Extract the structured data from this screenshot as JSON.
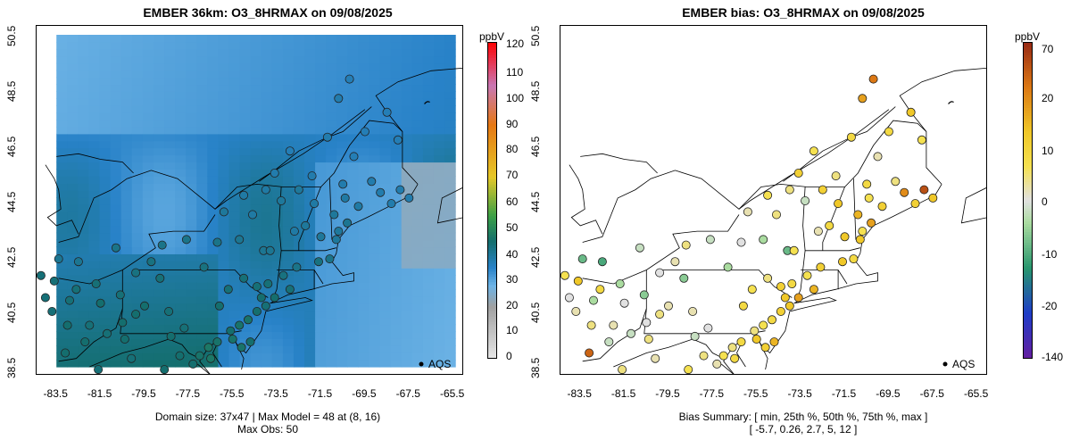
{
  "chart_data": [
    {
      "type": "heatmap",
      "title": "EMBER 36km: O3_8HRMAX on 09/08/2025",
      "colorbar_unit": "ppbV",
      "colorbar_ticks": [
        "120",
        "110",
        "100",
        "90",
        "80",
        "70",
        "60",
        "50",
        "40",
        "30",
        "20",
        "10",
        "0"
      ],
      "colorbar_range": [
        0,
        122
      ],
      "x_ticks": [
        "-83.5",
        "-81.5",
        "-79.5",
        "-77.5",
        "-75.5",
        "-73.5",
        "-71.5",
        "-69.5",
        "-67.5",
        "-65.5"
      ],
      "y_ticks": [
        "38.5",
        "40.5",
        "42.5",
        "44.5",
        "46.5",
        "48.5",
        "50.5"
      ],
      "xlim": [
        -84.4,
        -65.0
      ],
      "ylim": [
        38.5,
        50.5
      ],
      "legend_label": "AQS",
      "footer_line1": "Domain size: 37x47 | Max Model = 48 at (8, 16)",
      "footer_line2": "Max Obs: 50"
    },
    {
      "type": "scatter",
      "title": "EMBER bias: O3_8HRMAX on 09/08/2025",
      "colorbar_unit": "ppbV",
      "colorbar_ticks": [
        "70",
        "20",
        "10",
        "0",
        "-10",
        "-20",
        "-140"
      ],
      "x_ticks": [
        "-83.5",
        "-81.5",
        "-79.5",
        "-77.5",
        "-75.5",
        "-73.5",
        "-71.5",
        "-69.5",
        "-67.5",
        "-65.5"
      ],
      "y_ticks": [
        "38.5",
        "40.5",
        "42.5",
        "44.5",
        "46.5",
        "48.5",
        "50.5"
      ],
      "xlim": [
        -84.4,
        -65.0
      ],
      "ylim": [
        38.5,
        50.5
      ],
      "legend_label": "AQS",
      "footer_line1": "Bias Summary: [ min, 25th %, 50th %, 75th %, max ]",
      "footer_line2": "[ -5.7,   0.26,   2.7,    5,    12 ]",
      "bias_summary": {
        "min": -5.7,
        "p25": 0.26,
        "p50": 2.7,
        "p75": 5,
        "max": 12
      }
    }
  ],
  "stations": [
    [
      -70.7,
      48.2,
      38,
      8
    ],
    [
      -71.2,
      46.8,
      38,
      4
    ],
    [
      -72.9,
      46.3,
      37,
      3
    ],
    [
      -73.6,
      45.5,
      38,
      5
    ],
    [
      -74.0,
      44.9,
      39,
      2
    ],
    [
      -72.5,
      44.9,
      40,
      5
    ],
    [
      -71.8,
      44.4,
      39,
      6
    ],
    [
      -70.9,
      44.0,
      40,
      7
    ],
    [
      -70.3,
      43.7,
      41,
      8
    ],
    [
      -70.8,
      43.1,
      40,
      6
    ],
    [
      -71.1,
      42.4,
      42,
      4
    ],
    [
      -71.6,
      42.3,
      43,
      6
    ],
    [
      -72.6,
      42.1,
      42,
      5
    ],
    [
      -73.2,
      41.8,
      43,
      3
    ],
    [
      -72.9,
      41.3,
      44,
      7
    ],
    [
      -73.6,
      41.0,
      45,
      8
    ],
    [
      -74.0,
      40.7,
      44,
      6
    ],
    [
      -74.4,
      40.5,
      45,
      5
    ],
    [
      -74.8,
      40.2,
      46,
      4
    ],
    [
      -75.2,
      40.0,
      46,
      3
    ],
    [
      -75.6,
      39.8,
      45,
      2
    ],
    [
      -76.2,
      39.4,
      46,
      4
    ],
    [
      -76.6,
      39.2,
      47,
      2
    ],
    [
      -77.0,
      38.9,
      46,
      3
    ],
    [
      -77.3,
      38.6,
      45,
      1
    ],
    [
      -77.7,
      39.9,
      44,
      0
    ],
    [
      -78.4,
      40.5,
      44,
      1
    ],
    [
      -79.9,
      40.4,
      45,
      2
    ],
    [
      -80.5,
      40.1,
      45,
      0
    ],
    [
      -81.2,
      39.7,
      44,
      -1
    ],
    [
      -82.0,
      40.0,
      44,
      1
    ],
    [
      -83.0,
      40.0,
      45,
      2
    ],
    [
      -83.6,
      41.6,
      44,
      6
    ],
    [
      -82.6,
      41.3,
      44,
      4
    ],
    [
      -81.7,
      41.5,
      44,
      -2
    ],
    [
      -80.6,
      41.1,
      44,
      -3
    ],
    [
      -79.2,
      42.3,
      43,
      1
    ],
    [
      -78.7,
      42.9,
      42,
      2
    ],
    [
      -77.6,
      43.1,
      42,
      -1
    ],
    [
      -76.2,
      43.0,
      42,
      0
    ],
    [
      -75.2,
      43.1,
      41,
      -2
    ],
    [
      -74.1,
      42.7,
      41,
      -4
    ],
    [
      -73.8,
      42.7,
      41,
      3
    ],
    [
      -75.9,
      44.1,
      40,
      1
    ],
    [
      -75.0,
      44.7,
      39,
      3
    ],
    [
      -71.9,
      45.4,
      38,
      2
    ],
    [
      -70.5,
      45.1,
      38,
      4
    ],
    [
      -68.8,
      44.8,
      38,
      9
    ],
    [
      -68.3,
      44.4,
      38,
      5
    ],
    [
      -67.5,
      44.6,
      38,
      6
    ],
    [
      -69.8,
      44.3,
      39,
      5
    ],
    [
      -70.4,
      44.6,
      39,
      3
    ],
    [
      -69.2,
      45.2,
      38,
      2
    ],
    [
      -70.0,
      46.1,
      37,
      1
    ],
    [
      -68.0,
      46.7,
      37,
      3
    ],
    [
      -72.2,
      43.6,
      40,
      4
    ],
    [
      -71.5,
      43.2,
      40,
      6
    ],
    [
      -72.7,
      43.4,
      39,
      1
    ],
    [
      -73.3,
      44.5,
      40,
      -1
    ],
    [
      -74.6,
      44.0,
      39,
      2
    ],
    [
      -76.8,
      42.1,
      43,
      -2
    ],
    [
      -78.8,
      41.7,
      44,
      -3
    ],
    [
      -79.9,
      41.9,
      43,
      0
    ],
    [
      -80.8,
      42.8,
      42,
      -1
    ],
    [
      -82.5,
      42.3,
      41,
      -5
    ],
    [
      -83.4,
      42.4,
      41,
      -4
    ],
    [
      -82.9,
      40.9,
      44,
      -2
    ],
    [
      -81.5,
      40.8,
      45,
      0
    ],
    [
      -79.5,
      40.7,
      45,
      1
    ],
    [
      -78.3,
      39.6,
      45,
      -1
    ],
    [
      -76.1,
      40.7,
      45,
      4
    ],
    [
      -75.7,
      41.3,
      44,
      3
    ],
    [
      -75.0,
      41.7,
      44,
      2
    ],
    [
      -74.4,
      41.4,
      44,
      5
    ],
    [
      -74.2,
      41.0,
      45,
      6
    ],
    [
      -73.9,
      41.5,
      44,
      4
    ],
    [
      -74.7,
      39.4,
      45,
      7
    ],
    [
      -75.1,
      39.2,
      46,
      5
    ],
    [
      -75.5,
      39.5,
      46,
      6
    ],
    [
      -76.5,
      38.8,
      47,
      4
    ],
    [
      -77.9,
      38.9,
      45,
      2
    ],
    [
      -78.6,
      38.4,
      45,
      3
    ],
    [
      -80.1,
      38.8,
      44,
      1
    ],
    [
      -81.6,
      38.4,
      44,
      2
    ],
    [
      -83.1,
      39.0,
      45,
      11
    ],
    [
      -84.0,
      41.0,
      44,
      0
    ],
    [
      -83.7,
      40.5,
      44,
      1
    ],
    [
      -84.2,
      41.8,
      44,
      3
    ],
    [
      -82.2,
      39.4,
      45,
      -1
    ],
    [
      -80.4,
      39.5,
      45,
      2
    ],
    [
      -70.2,
      48.9,
      37,
      10
    ],
    [
      -68.5,
      47.7,
      37,
      6
    ],
    [
      -69.5,
      47.0,
      37,
      4
    ],
    [
      -67.9,
      44.9,
      38,
      12
    ],
    [
      -70.7,
      43.4,
      40,
      3
    ]
  ]
}
